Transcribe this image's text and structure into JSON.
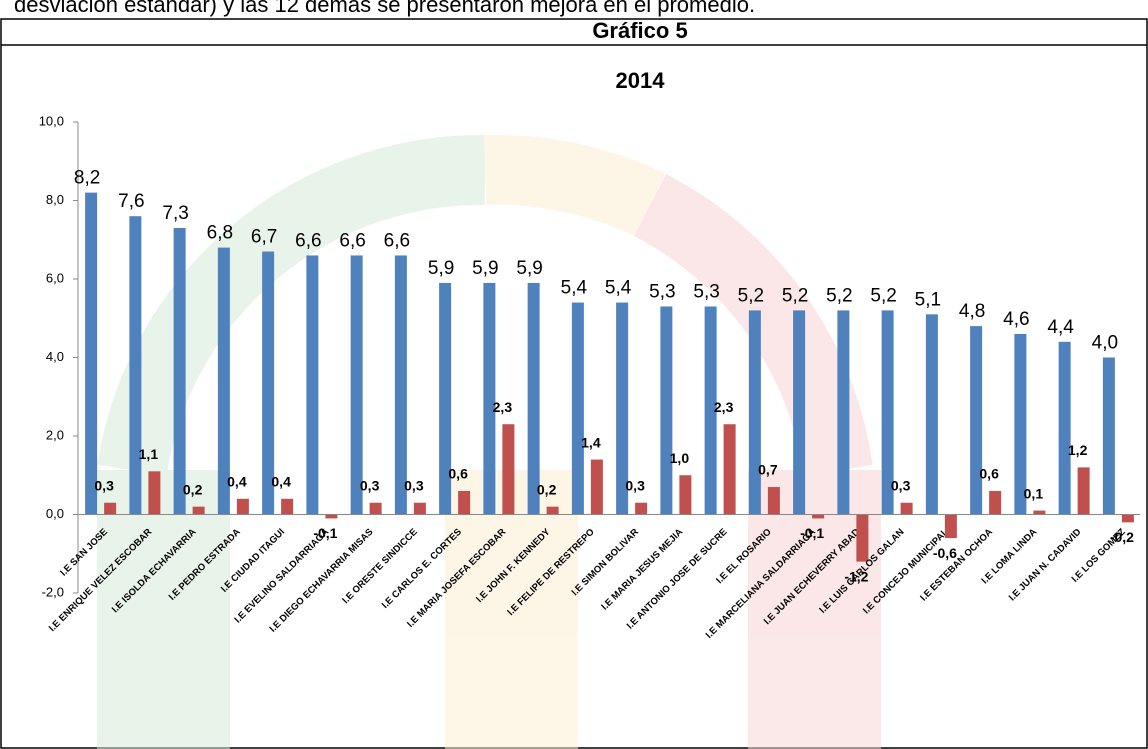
{
  "page_text": "desviación estándar) y las 12 demás se presentaron mejora en el promedio.",
  "figure_label": "Gráfico 5",
  "chart_data": {
    "type": "bar",
    "title": "2014",
    "categories": [
      "I.E SAN JOSE",
      "I.E ENRIQUE VELEZ ESCOBAR",
      "I.E ISOLDA ECHAVARRIA",
      "I.E PEDRO ESTRADA",
      "I.E CIUDAD ITAGUI",
      "I.E EVELINO SALDARRIAGA",
      "I.E DIEGO ECHAVARRIA MISAS",
      "I.E ORESTE SINDICCE",
      "I.E CARLOS E. CORTES",
      "I.E MARIA JOSEFA ESCOBAR",
      "I.E JOHN F. KENNEDY",
      "I.E FELIPE DE RESTREPO",
      "I.E SIMON BOLIVAR",
      "I.E MARIA JESUS MEJIA",
      "I.E ANTONIO JOSE DE SUCRE",
      "I.E EL ROSARIO",
      "I.E  MARCELIANA SALDARRIAGA",
      "I.E JUAN ECHEVERRY ABAD",
      "I.E LUIS CARLOS GALAN",
      "I.E CONCEJO MUNICIPAL",
      "I.E ESTEBAN OCHOA",
      "I.E LOMA LINDA",
      "I.E JUAN N. CADAVID",
      "I.E LOS GOMEZ"
    ],
    "series": [
      {
        "color": "#4f81bd",
        "values": [
          8.2,
          7.6,
          7.3,
          6.8,
          6.7,
          6.6,
          6.6,
          6.6,
          5.9,
          5.9,
          5.9,
          5.4,
          5.4,
          5.3,
          5.3,
          5.2,
          5.2,
          5.2,
          5.2,
          5.1,
          4.8,
          4.6,
          4.4,
          4.0
        ],
        "value_labels": [
          "8,2",
          "7,6",
          "7,3",
          "6,8",
          "6,7",
          "6,6",
          "6,6",
          "6,6",
          "5,9",
          "5,9",
          "5,9",
          "5,4",
          "5,4",
          "5,3",
          "5,3",
          "5,2",
          "5,2",
          "5,2",
          "5,2",
          "5,1",
          "4,8",
          "4,6",
          "4,4",
          "4,0"
        ]
      },
      {
        "color": "#c0504d",
        "values": [
          0.3,
          1.1,
          0.2,
          0.4,
          0.4,
          -0.1,
          0.3,
          0.3,
          0.6,
          2.3,
          0.2,
          1.4,
          0.3,
          1.0,
          2.3,
          0.7,
          -0.1,
          -1.2,
          0.3,
          -0.6,
          0.6,
          0.1,
          1.2,
          -0.2
        ],
        "value_labels": [
          "0,3",
          "1,1",
          "0,2",
          "0,4",
          "0,4",
          "-0,1",
          "0,3",
          "0,3",
          "0,6",
          "2,3",
          "0,2",
          "1,4",
          "0,3",
          "1,0",
          "2,3",
          "0,7",
          "-0,1",
          "-1,2",
          "0,3",
          "-0,6",
          "0,6",
          "0,1",
          "1,2",
          "-0,2"
        ]
      }
    ],
    "ylim": [
      -2,
      10
    ],
    "yticks": [
      {
        "value": -2,
        "label": "-2,0"
      },
      {
        "value": 0,
        "label": "0,0"
      },
      {
        "value": 2,
        "label": "2,0"
      },
      {
        "value": 4,
        "label": "4,0"
      },
      {
        "value": 6,
        "label": "6,0"
      },
      {
        "value": 8,
        "label": "8,0"
      },
      {
        "value": 10,
        "label": "10,0"
      }
    ],
    "grid": false
  }
}
